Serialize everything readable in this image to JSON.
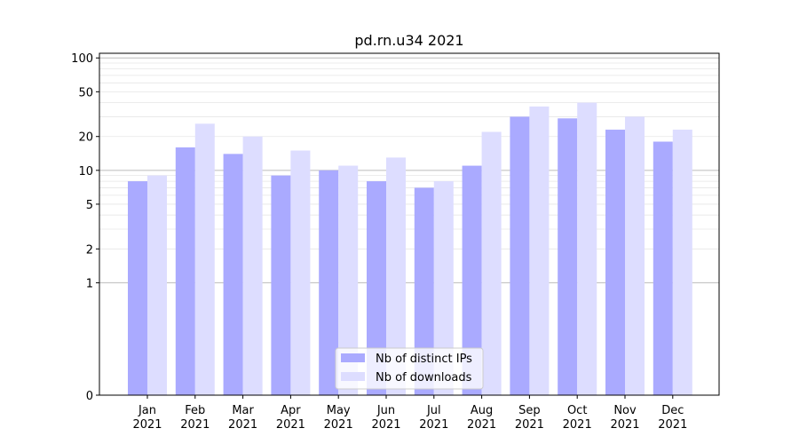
{
  "chart_data": {
    "type": "bar",
    "title": "pd.rn.u34 2021",
    "xlabel": "",
    "ylabel": "",
    "y_scale": "symlog",
    "ylim": [
      0,
      110
    ],
    "y_ticks": [
      0,
      1,
      2,
      5,
      10,
      20,
      50,
      100
    ],
    "categories": [
      {
        "month": "Jan",
        "year": "2021"
      },
      {
        "month": "Feb",
        "year": "2021"
      },
      {
        "month": "Mar",
        "year": "2021"
      },
      {
        "month": "Apr",
        "year": "2021"
      },
      {
        "month": "May",
        "year": "2021"
      },
      {
        "month": "Jun",
        "year": "2021"
      },
      {
        "month": "Jul",
        "year": "2021"
      },
      {
        "month": "Aug",
        "year": "2021"
      },
      {
        "month": "Sep",
        "year": "2021"
      },
      {
        "month": "Oct",
        "year": "2021"
      },
      {
        "month": "Nov",
        "year": "2021"
      },
      {
        "month": "Dec",
        "year": "2021"
      }
    ],
    "series": [
      {
        "name": "Nb of distinct IPs",
        "color": "#aaaaff",
        "values": [
          8,
          16,
          14,
          9,
          10,
          8,
          7,
          11,
          30,
          29,
          23,
          18
        ]
      },
      {
        "name": "Nb of downloads",
        "color": "#ddddff",
        "values": [
          9,
          26,
          20,
          15,
          11,
          13,
          8,
          22,
          37,
          40,
          30,
          23
        ]
      }
    ],
    "grid": true,
    "legend_position": "bottom-center"
  }
}
